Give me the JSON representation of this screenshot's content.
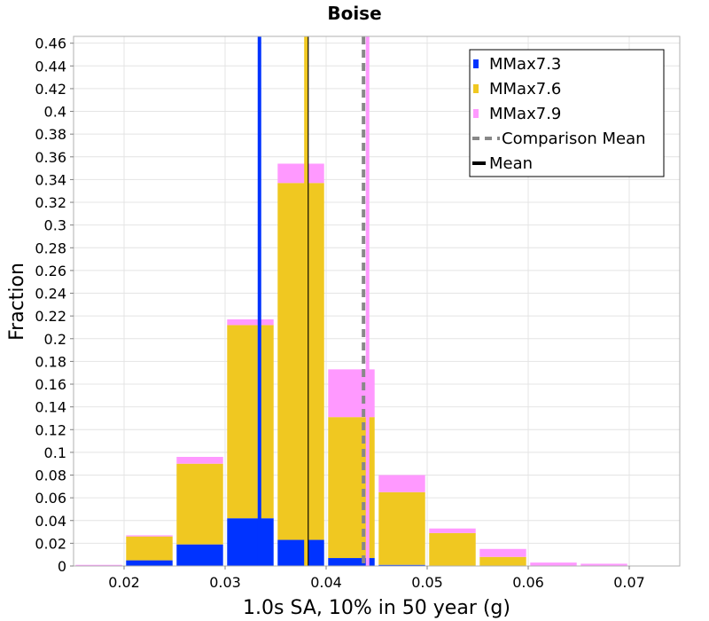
{
  "chart_data": {
    "type": "bar",
    "stacked": true,
    "title": "Boise",
    "xlabel": "1.0s SA, 10% in 50 year (g)",
    "ylabel": "Fraction",
    "xlim": [
      0.015,
      0.075
    ],
    "ylim": [
      0,
      0.466
    ],
    "xticks": [
      0.02,
      0.03,
      0.04,
      0.05,
      0.06,
      0.07
    ],
    "yticks": [
      0,
      0.02,
      0.04,
      0.06,
      0.08,
      0.1,
      0.12,
      0.14,
      0.16,
      0.18,
      0.2,
      0.22,
      0.24,
      0.26,
      0.28,
      0.3,
      0.32,
      0.34,
      0.36,
      0.38,
      0.4,
      0.42,
      0.44,
      0.46
    ],
    "bin_width": 0.005,
    "bin_centers": [
      0.0175,
      0.0225,
      0.0275,
      0.0325,
      0.0375,
      0.0425,
      0.0475,
      0.0525,
      0.0575,
      0.0625,
      0.0675,
      0.0725
    ],
    "series": [
      {
        "name": "MMax7.3",
        "color": "#0033ff",
        "values": [
          0.0,
          0.005,
          0.019,
          0.042,
          0.023,
          0.007,
          0.001,
          0.0,
          0.0,
          0.0,
          0.0,
          0.0
        ]
      },
      {
        "name": "MMax7.6",
        "color": "#f0c821",
        "values": [
          0.0,
          0.021,
          0.071,
          0.17,
          0.314,
          0.124,
          0.064,
          0.029,
          0.008,
          0.0,
          0.0,
          0.0
        ]
      },
      {
        "name": "MMax7.9",
        "color": "#ff99ff",
        "values": [
          0.001,
          0.001,
          0.006,
          0.005,
          0.017,
          0.042,
          0.015,
          0.004,
          0.007,
          0.003,
          0.002,
          0.0
        ]
      }
    ],
    "lines": [
      {
        "name": "Comparison Mean",
        "x": 0.0437,
        "color": "#888888",
        "style": "dashed"
      },
      {
        "name": "Mean",
        "x": 0.0381,
        "color": "#000000",
        "style": "solid"
      },
      {
        "name": "MMax7.3 mean",
        "x": 0.0334,
        "color": "#0033ff",
        "style": "solid",
        "legend": false
      },
      {
        "name": "MMax7.6 mean",
        "x": 0.038,
        "color": "#f0c821",
        "style": "solid",
        "legend": false
      },
      {
        "name": "MMax7.9 mean",
        "x": 0.0441,
        "color": "#ff99ff",
        "style": "solid",
        "legend": false
      }
    ],
    "legend": {
      "position": "top-right",
      "entries": [
        {
          "label": "MMax7.3",
          "kind": "box",
          "color": "#0033ff"
        },
        {
          "label": "MMax7.6",
          "kind": "box",
          "color": "#f0c821"
        },
        {
          "label": "MMax7.9",
          "kind": "box",
          "color": "#ff99ff"
        },
        {
          "label": "Comparison Mean",
          "kind": "dashed",
          "color": "#888888"
        },
        {
          "label": "Mean",
          "kind": "solid",
          "color": "#000000"
        }
      ]
    },
    "grid": true
  }
}
